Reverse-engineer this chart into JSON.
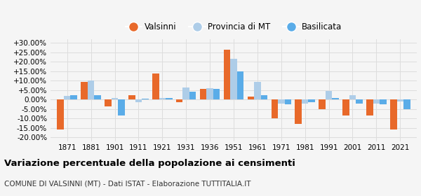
{
  "years": [
    1871,
    1881,
    1901,
    1911,
    1921,
    1931,
    1936,
    1951,
    1961,
    1971,
    1981,
    1991,
    2001,
    2011,
    2021
  ],
  "valsinni": [
    -16.0,
    9.5,
    -3.5,
    2.5,
    14.0,
    -1.5,
    5.5,
    26.5,
    1.5,
    -10.0,
    -13.0,
    -5.0,
    -8.5,
    -8.5,
    -16.0
  ],
  "provincia_mt": [
    2.0,
    10.0,
    1.0,
    -1.5,
    1.0,
    6.5,
    6.0,
    21.5,
    9.5,
    -2.0,
    -2.0,
    4.5,
    2.5,
    -2.0,
    -1.0
  ],
  "basilicata": [
    2.5,
    2.5,
    -8.5,
    0.5,
    1.0,
    4.0,
    5.5,
    15.0,
    2.5,
    -2.5,
    -1.5,
    1.0,
    -2.0,
    -2.5,
    -5.0
  ],
  "bar_width": 0.28,
  "color_valsinni": "#e8692a",
  "color_provincia": "#aecde8",
  "color_basilicata": "#5aace8",
  "title": "Variazione percentuale della popolazione ai censimenti",
  "subtitle": "COMUNE DI VALSINNI (MT) - Dati ISTAT - Elaborazione TUTTITALIA.IT",
  "legend_labels": [
    "Valsinni",
    "Provincia di MT",
    "Basilicata"
  ],
  "ylim": [
    -22,
    32
  ],
  "yticks": [
    -20,
    -15,
    -10,
    -5,
    0,
    5,
    10,
    15,
    20,
    25,
    30
  ],
  "ytick_labels": [
    "-20.00%",
    "-15.00%",
    "-10.00%",
    "-5.00%",
    "0.00%",
    "+5.00%",
    "+10.00%",
    "+15.00%",
    "+20.00%",
    "+25.00%",
    "+30.00%"
  ],
  "background_color": "#f5f5f5",
  "grid_color": "#dddddd"
}
